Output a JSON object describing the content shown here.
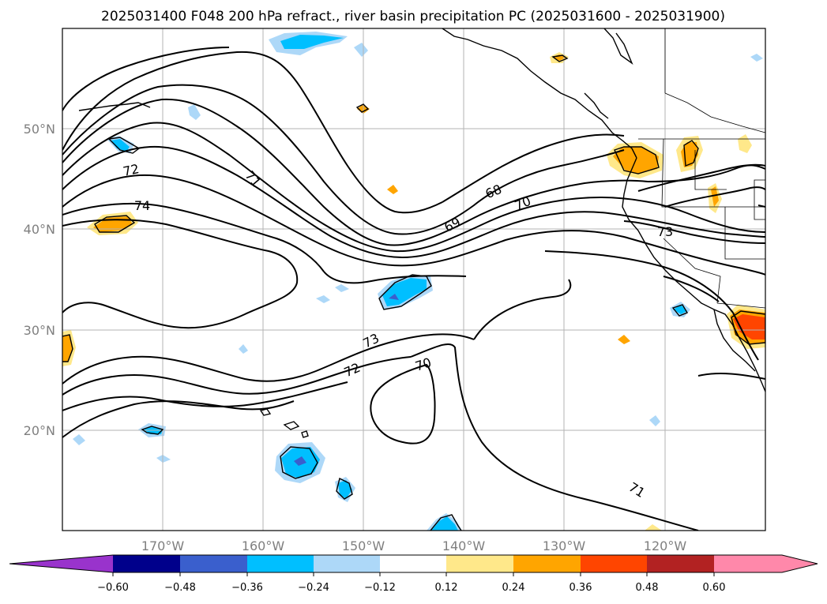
{
  "title": "2025031400 F048 200 hPa refract., river basin precipitation PC (2025031600 - 2025031900)",
  "map": {
    "lon_range": [
      -180,
      -110
    ],
    "lat_range": [
      10,
      60
    ],
    "lat_ticks": [
      {
        "value": 50,
        "label": "50°N"
      },
      {
        "value": 40,
        "label": "40°N"
      },
      {
        "value": 30,
        "label": "30°N"
      },
      {
        "value": 20,
        "label": "20°N"
      }
    ],
    "lon_ticks": [
      {
        "value": -170,
        "label": "170°W"
      },
      {
        "value": -160,
        "label": "160°W"
      },
      {
        "value": -150,
        "label": "150°W"
      },
      {
        "value": -140,
        "label": "140°W"
      },
      {
        "value": -130,
        "label": "130°W"
      },
      {
        "value": -120,
        "label": "120°W"
      }
    ],
    "contour_labels": [
      {
        "text": "72",
        "lon": -177,
        "lat": 45.7
      },
      {
        "text": "74",
        "lon": -178,
        "lat": 42.3
      },
      {
        "text": "71",
        "lon": -161,
        "lat": 43.5
      },
      {
        "text": "68",
        "lon": -134.5,
        "lat": 43.4
      },
      {
        "text": "70",
        "lon": -132,
        "lat": 42.3
      },
      {
        "text": "69",
        "lon": -138,
        "lat": 40.4
      },
      {
        "text": "73",
        "lon": -118,
        "lat": 39.7
      },
      {
        "text": "73",
        "lon": -149,
        "lat": 29.1
      },
      {
        "text": "72",
        "lon": -151.5,
        "lat": 26.2
      },
      {
        "text": "70",
        "lon": -143.5,
        "lat": 26.7
      },
      {
        "text": "71",
        "lon": -124.5,
        "lat": 13.9
      }
    ]
  },
  "colorbar": {
    "ticks": [
      "−0.60",
      "−0.48",
      "−0.36",
      "−0.24",
      "−0.12",
      "0.12",
      "0.24",
      "0.36",
      "0.48",
      "0.60"
    ],
    "colors": [
      "#9933cc",
      "#00008b",
      "#3a5fcd",
      "#00bfff",
      "#add8f8",
      "#ffffff",
      "#ffe88a",
      "#ffa500",
      "#ff4500",
      "#b22222",
      "#ff88aa",
      "#ff88aa"
    ]
  }
}
